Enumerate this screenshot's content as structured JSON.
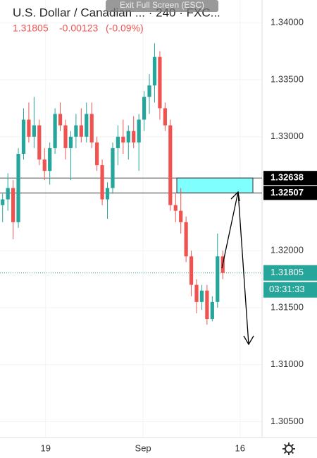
{
  "overlay": "Exit Full Screen (ESC)",
  "header": {
    "title": "U.S. Dollar / Canadian ... · 240 · FXC...",
    "last": 1.31805,
    "change": {
      "value": -0.00123,
      "label": "-0.00123"
    },
    "change_pct": {
      "value": -0.09,
      "label": "(-0.09%)"
    }
  },
  "chart_data": {
    "type": "candlestick",
    "up_color": "#26a69a",
    "down_color": "#ef5350",
    "open": [
      1.324,
      1.3245,
      1.3255,
      1.3225,
      1.3285,
      1.3315,
      1.33,
      1.331,
      1.328,
      1.327,
      1.329,
      1.332,
      1.331,
      1.329,
      1.33,
      1.331,
      1.33,
      1.332,
      1.3295,
      1.3275,
      1.3245,
      1.3255,
      1.329,
      1.33,
      1.3295,
      1.3305,
      1.3295,
      1.3315,
      1.3335,
      1.3345,
      1.337,
      1.3325,
      1.331,
      1.324,
      1.3235,
      1.3225,
      1.3195,
      1.317,
      1.3155,
      1.3165,
      1.314,
      1.3155,
      1.3195
    ],
    "high": [
      1.325,
      1.3268,
      1.3262,
      1.329,
      1.3325,
      1.333,
      1.3335,
      1.3315,
      1.329,
      1.3295,
      1.3325,
      1.333,
      1.3315,
      1.3305,
      1.332,
      1.3325,
      1.333,
      1.333,
      1.33,
      1.328,
      1.326,
      1.3295,
      1.331,
      1.3315,
      1.331,
      1.3318,
      1.332,
      1.334,
      1.3355,
      1.3382,
      1.3375,
      1.333,
      1.3315,
      1.325,
      1.3255,
      1.323,
      1.32,
      1.3175,
      1.317,
      1.317,
      1.316,
      1.3215,
      1.32
    ],
    "low": [
      1.3225,
      1.3235,
      1.321,
      1.322,
      1.328,
      1.3295,
      1.329,
      1.3275,
      1.3262,
      1.3258,
      1.3285,
      1.3305,
      1.328,
      1.3262,
      1.329,
      1.3295,
      1.3295,
      1.329,
      1.327,
      1.324,
      1.3228,
      1.325,
      1.3275,
      1.3285,
      1.328,
      1.329,
      1.327,
      1.3305,
      1.332,
      1.333,
      1.3315,
      1.3305,
      1.3235,
      1.3225,
      1.3215,
      1.319,
      1.316,
      1.3145,
      1.3148,
      1.3135,
      1.3138,
      1.315,
      1.3175
    ],
    "close": [
      1.3245,
      1.3255,
      1.3225,
      1.3285,
      1.3315,
      1.33,
      1.331,
      1.328,
      1.327,
      1.329,
      1.332,
      1.331,
      1.329,
      1.33,
      1.331,
      1.33,
      1.332,
      1.3295,
      1.3275,
      1.3245,
      1.3255,
      1.329,
      1.33,
      1.3295,
      1.3305,
      1.3295,
      1.3315,
      1.3335,
      1.3345,
      1.337,
      1.3325,
      1.331,
      1.324,
      1.3235,
      1.3225,
      1.3195,
      1.317,
      1.3155,
      1.3165,
      1.314,
      1.3155,
      1.3195,
      1.31805
    ],
    "xlim": [
      0,
      50
    ],
    "xticks": [
      {
        "value": 8.7,
        "label": "19"
      },
      {
        "value": 27.3,
        "label": "Sep"
      },
      {
        "value": 45.8,
        "label": "16"
      }
    ],
    "ylim": [
      1.3036,
      1.342
    ],
    "yticks": [
      {
        "value": 1.305,
        "label": "1.30500"
      },
      {
        "value": 1.31,
        "label": "1.31000"
      },
      {
        "value": 1.315,
        "label": "1.31500"
      },
      {
        "value": 1.32,
        "label": "1.32000"
      },
      {
        "value": 1.325,
        "label": "1.32500"
      },
      {
        "value": 1.33,
        "label": "1.33000"
      },
      {
        "value": 1.335,
        "label": "1.33500"
      },
      {
        "value": 1.34,
        "label": "1.34000"
      }
    ],
    "levels": [
      1.32638,
      1.32507
    ],
    "zone_color": "#80ffff",
    "last_price": 1.31805,
    "countdown": "03:31:33",
    "grid": true
  }
}
